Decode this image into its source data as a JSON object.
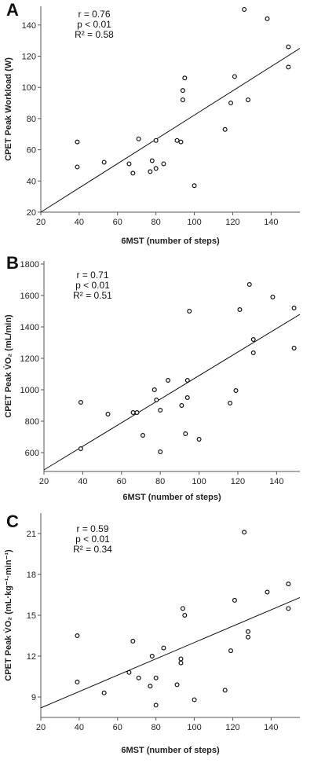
{
  "chart_data": [
    {
      "type": "scatter",
      "panel_label": "A",
      "xlabel": "6MST (number of steps)",
      "ylabel": "CPET Peak Workload (W)",
      "xlim": [
        20,
        155
      ],
      "ylim": [
        20,
        152
      ],
      "xticks": [
        20,
        40,
        60,
        80,
        100,
        120,
        140
      ],
      "yticks": [
        20,
        40,
        60,
        80,
        100,
        120,
        140
      ],
      "stats": [
        "r = 0.76",
        "p < 0.01",
        "R² = 0.58"
      ],
      "fit_line": [
        [
          20,
          20
        ],
        [
          155,
          125
        ]
      ],
      "points": [
        [
          39,
          65
        ],
        [
          39,
          49
        ],
        [
          53,
          52
        ],
        [
          66,
          51
        ],
        [
          68,
          45
        ],
        [
          71,
          67
        ],
        [
          77,
          46
        ],
        [
          78,
          53
        ],
        [
          80,
          48
        ],
        [
          80,
          66
        ],
        [
          84,
          51
        ],
        [
          91,
          66
        ],
        [
          93,
          65
        ],
        [
          94,
          92
        ],
        [
          94,
          98
        ],
        [
          95,
          106
        ],
        [
          100,
          37
        ],
        [
          116,
          73
        ],
        [
          119,
          90
        ],
        [
          121,
          107
        ],
        [
          126,
          150
        ],
        [
          128,
          92
        ],
        [
          138,
          144
        ],
        [
          149,
          126
        ],
        [
          149,
          113
        ]
      ]
    },
    {
      "type": "scatter",
      "panel_label": "B",
      "xlabel": "6MST (number of steps)",
      "ylabel": "CPET Peak V̇O₂ (mL/min)",
      "xlim": [
        20,
        152
      ],
      "ylim": [
        480,
        1820
      ],
      "xticks": [
        20,
        40,
        60,
        80,
        100,
        120,
        140
      ],
      "yticks": [
        600,
        800,
        1000,
        1200,
        1400,
        1600,
        1800
      ],
      "stats": [
        "r = 0.71",
        "p < 0.01",
        "R² = 0.51"
      ],
      "fit_line": [
        [
          20,
          490
        ],
        [
          152,
          1480
        ]
      ],
      "points": [
        [
          39,
          920
        ],
        [
          39,
          625
        ],
        [
          53,
          845
        ],
        [
          66,
          855
        ],
        [
          68,
          855
        ],
        [
          71,
          710
        ],
        [
          77,
          1000
        ],
        [
          78,
          935
        ],
        [
          80,
          870
        ],
        [
          80,
          605
        ],
        [
          84,
          1060
        ],
        [
          91,
          900
        ],
        [
          93,
          720
        ],
        [
          94,
          1060
        ],
        [
          94,
          950
        ],
        [
          95,
          1500
        ],
        [
          100,
          685
        ],
        [
          116,
          915
        ],
        [
          119,
          995
        ],
        [
          121,
          1510
        ],
        [
          126,
          1670
        ],
        [
          128,
          1320
        ],
        [
          128,
          1235
        ],
        [
          138,
          1590
        ],
        [
          149,
          1520
        ],
        [
          149,
          1265
        ]
      ]
    },
    {
      "type": "scatter",
      "panel_label": "C",
      "xlabel": "6MST (number of steps)",
      "ylabel": "CPET Peak V̇O₂ (mL·kg⁻¹·min⁻¹)",
      "xlim": [
        20,
        155
      ],
      "ylim": [
        7.5,
        22.5
      ],
      "xticks": [
        20,
        40,
        60,
        80,
        100,
        120,
        140
      ],
      "yticks": [
        9,
        12,
        15,
        18,
        21
      ],
      "stats": [
        "r = 0.59",
        "p < 0.01",
        "R² = 0.34"
      ],
      "fit_line": [
        [
          20,
          8.2
        ],
        [
          155,
          16.3
        ]
      ],
      "points": [
        [
          39,
          13.5
        ],
        [
          39,
          10.1
        ],
        [
          53,
          9.3
        ],
        [
          66,
          10.8
        ],
        [
          68,
          13.1
        ],
        [
          71,
          10.4
        ],
        [
          77,
          9.8
        ],
        [
          78,
          12.0
        ],
        [
          80,
          10.4
        ],
        [
          80,
          8.4
        ],
        [
          84,
          12.6
        ],
        [
          91,
          9.9
        ],
        [
          93,
          11.5
        ],
        [
          93,
          11.8
        ],
        [
          94,
          15.5
        ],
        [
          95,
          15.0
        ],
        [
          100,
          8.8
        ],
        [
          116,
          9.5
        ],
        [
          119,
          12.4
        ],
        [
          121,
          16.1
        ],
        [
          126,
          21.1
        ],
        [
          128,
          13.8
        ],
        [
          128,
          13.4
        ],
        [
          138,
          16.7
        ],
        [
          149,
          17.3
        ],
        [
          149,
          15.5
        ]
      ]
    }
  ]
}
